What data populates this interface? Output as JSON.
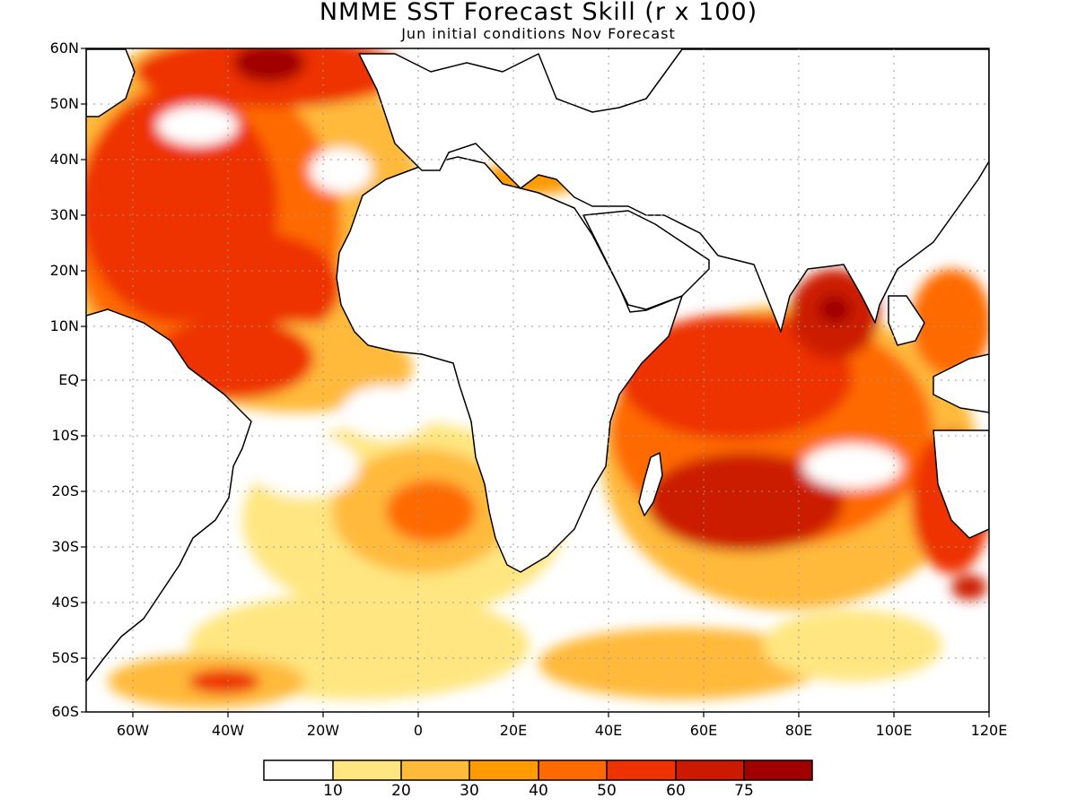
{
  "title": "NMME SST Forecast Skill (r x 100)",
  "subtitle": "Jun initial conditions  Nov Forecast",
  "lat_ticks": [
    "60N",
    "50N",
    "40N",
    "30N",
    "20N",
    "10N",
    "EQ",
    "10S",
    "20S",
    "30S",
    "40S",
    "50S",
    "60S"
  ],
  "lon_ticks": [
    "60W",
    "40W",
    "20W",
    "0",
    "20E",
    "40E",
    "60E",
    "80E",
    "100E",
    "120E"
  ],
  "colorbar": {
    "labels": [
      "10",
      "20",
      "30",
      "40",
      "50",
      "60",
      "75"
    ],
    "colors": [
      "#ffffff",
      "#ffe680",
      "#ffba3a",
      "#ff9a00",
      "#ff6a00",
      "#ee3300",
      "#cc1a00",
      "#a00000"
    ]
  },
  "map": {
    "lon_range": [
      -70,
      120
    ],
    "lat_range": [
      -60,
      60
    ],
    "grid": true,
    "land_color": "#ffffff",
    "coastline_color": "#000000"
  }
}
